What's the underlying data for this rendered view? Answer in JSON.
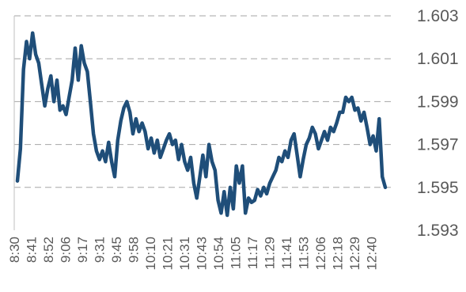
{
  "chart_data": {
    "type": "line",
    "title": "",
    "xlabel": "",
    "ylabel": "",
    "ylim": [
      1.593,
      1.603
    ],
    "yticks": [
      "1.603",
      "1.601",
      "1.599",
      "1.597",
      "1.595",
      "1.593"
    ],
    "y_axis_side": "right",
    "grid": "horizontal dashed",
    "legend": "none",
    "line_color": "#1f4e79",
    "xticks": [
      "8:30",
      "8:41",
      "8:52",
      "9:06",
      "9:17",
      "9:31",
      "9:45",
      "9:58",
      "10:10",
      "10:21",
      "10:31",
      "10:43",
      "10:54",
      "11:05",
      "11:17",
      "11:29",
      "11:41",
      "11:53",
      "12:06",
      "12:18",
      "12:29",
      "12:40"
    ],
    "series": [
      {
        "values": [
          1.5953,
          1.5968,
          1.6005,
          1.6018,
          1.601,
          1.6022,
          1.6012,
          1.6008,
          1.5998,
          1.5988,
          1.5996,
          1.6002,
          1.599,
          1.6,
          1.5986,
          1.5988,
          1.5984,
          1.5992,
          1.6,
          1.6015,
          1.6,
          1.6016,
          1.6008,
          1.6004,
          1.599,
          1.5975,
          1.5967,
          1.5963,
          1.5967,
          1.5962,
          1.5971,
          1.5962,
          1.5955,
          1.5972,
          1.5981,
          1.5987,
          1.599,
          1.5985,
          1.5975,
          1.5982,
          1.5976,
          1.598,
          1.5976,
          1.5968,
          1.5973,
          1.5966,
          1.5972,
          1.5964,
          1.5968,
          1.5972,
          1.5975,
          1.597,
          1.5972,
          1.5963,
          1.597,
          1.5962,
          1.5958,
          1.5964,
          1.5952,
          1.5945,
          1.5955,
          1.5965,
          1.5955,
          1.597,
          1.5962,
          1.5958,
          1.5944,
          1.5938,
          1.5948,
          1.5937,
          1.595,
          1.594,
          1.596,
          1.5952,
          1.596,
          1.5938,
          1.5945,
          1.5943,
          1.5944,
          1.5949,
          1.5946,
          1.595,
          1.5947,
          1.5952,
          1.5955,
          1.5958,
          1.5964,
          1.5962,
          1.5967,
          1.5964,
          1.5972,
          1.5975,
          1.5965,
          1.5955,
          1.5963,
          1.597,
          1.5973,
          1.5978,
          1.5975,
          1.5968,
          1.5972,
          1.5976,
          1.5972,
          1.5978,
          1.5976,
          1.598,
          1.5985,
          1.5985,
          1.5992,
          1.599,
          1.5992,
          1.5986,
          1.5987,
          1.5981,
          1.5985,
          1.5978,
          1.597,
          1.5974,
          1.5967,
          1.5982,
          1.5955,
          1.595
        ]
      }
    ]
  }
}
